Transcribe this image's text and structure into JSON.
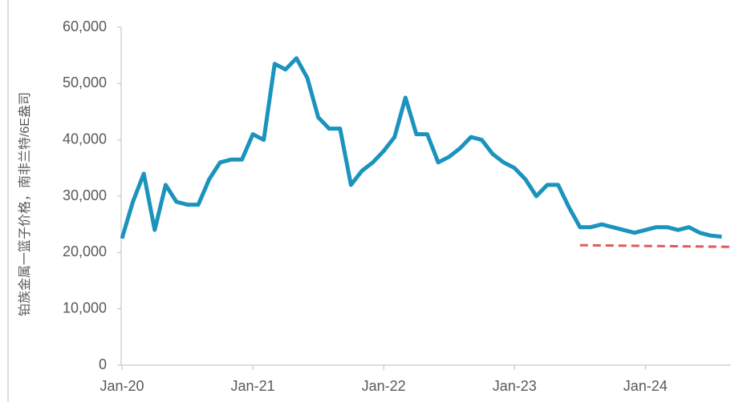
{
  "chart_data": {
    "type": "line",
    "y_label": "铂族金属一篮子价格，南非兰特/6E盎司",
    "series": [
      {
        "color": "#1a93bd",
        "dashed": false,
        "x": [
          "2020-01",
          "2020-02",
          "2020-03",
          "2020-04",
          "2020-05",
          "2020-06",
          "2020-07",
          "2020-08",
          "2020-09",
          "2020-10",
          "2020-11",
          "2020-12",
          "2021-01",
          "2021-02",
          "2021-03",
          "2021-04",
          "2021-05",
          "2021-06",
          "2021-07",
          "2021-08",
          "2021-09",
          "2021-10",
          "2021-11",
          "2021-12",
          "2022-01",
          "2022-02",
          "2022-03",
          "2022-04",
          "2022-05",
          "2022-06",
          "2022-07",
          "2022-08",
          "2022-09",
          "2022-10",
          "2022-11",
          "2022-12",
          "2023-01",
          "2023-02",
          "2023-03",
          "2023-04",
          "2023-05",
          "2023-06",
          "2023-07",
          "2023-08",
          "2023-09",
          "2023-10",
          "2023-11",
          "2023-12",
          "2024-01",
          "2024-02",
          "2024-03",
          "2024-04",
          "2024-05",
          "2024-06",
          "2024-07",
          "2024-08"
        ],
        "values": [
          22500,
          29000,
          34000,
          24000,
          32000,
          29000,
          28500,
          28500,
          33000,
          36000,
          36500,
          36500,
          41000,
          40000,
          53500,
          52500,
          54500,
          51000,
          44000,
          42000,
          42000,
          32000,
          34500,
          36000,
          38000,
          40500,
          47500,
          41000,
          41000,
          36000,
          37000,
          38500,
          40500,
          40000,
          37500,
          36000,
          35000,
          33000,
          30000,
          32000,
          32000,
          28000,
          24500,
          24500,
          25000,
          24500,
          24000,
          23500,
          24000,
          24500,
          24500,
          24000,
          24500,
          23500,
          23000,
          22800
        ]
      },
      {
        "color": "#e05a5a",
        "dashed": true,
        "x": [
          "2023-07",
          "2024-09"
        ],
        "values": [
          21300,
          21000
        ]
      }
    ],
    "xlim": [
      "2020-01",
      "2024-09"
    ],
    "xticks": [
      {
        "value": "2020-01",
        "label": "Jan-20"
      },
      {
        "value": "2021-01",
        "label": "Jan-21"
      },
      {
        "value": "2022-01",
        "label": "Jan-22"
      },
      {
        "value": "2023-01",
        "label": "Jan-23"
      },
      {
        "value": "2024-01",
        "label": "Jan-24"
      }
    ],
    "ylim": [
      0,
      60000
    ],
    "yticks": [
      0,
      {
        "value": 10000,
        "label": "10,000"
      },
      {
        "value": 20000,
        "label": "20,000"
      },
      {
        "value": 30000,
        "label": "30,000"
      },
      {
        "value": 40000,
        "label": "40,000"
      },
      {
        "value": 50000,
        "label": "50,000"
      },
      {
        "value": 60000,
        "label": "60,000"
      }
    ]
  }
}
